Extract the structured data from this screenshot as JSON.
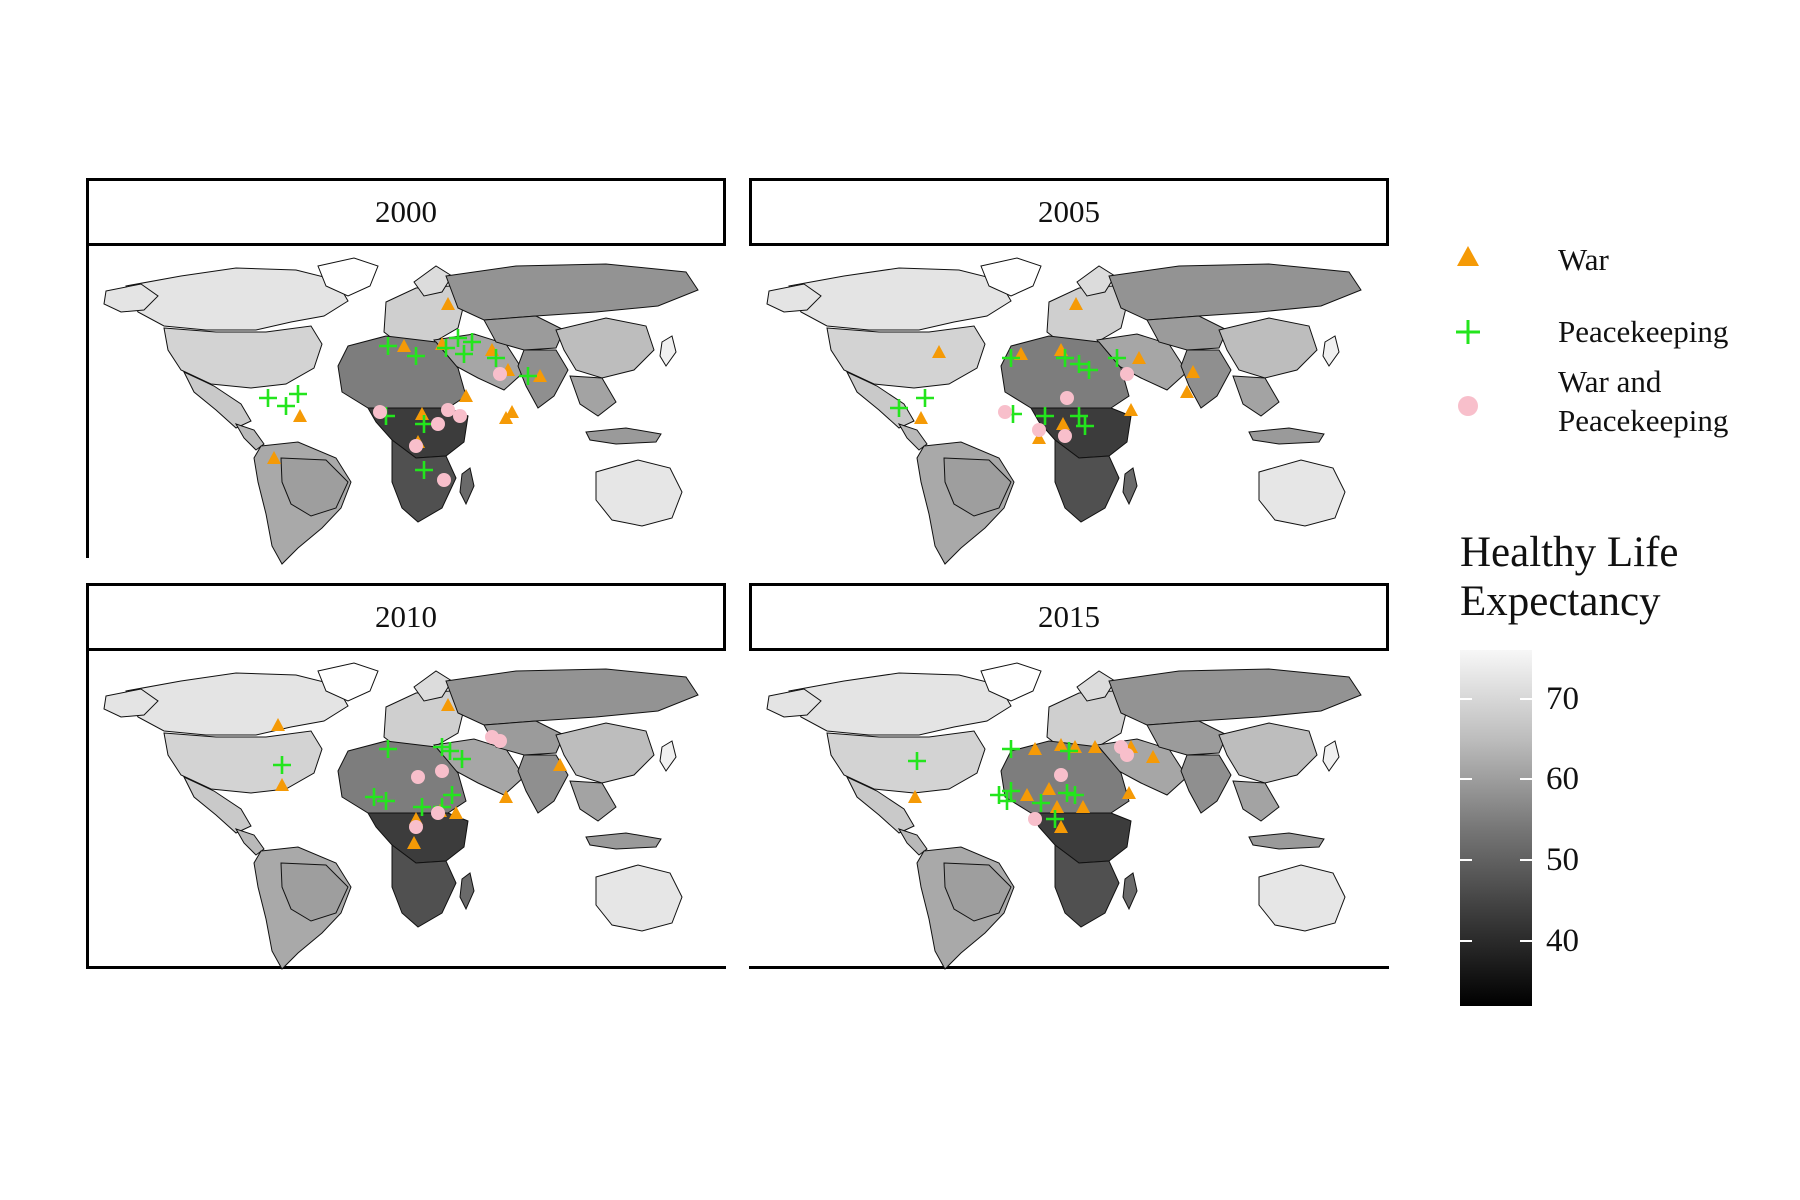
{
  "panels": [
    {
      "year": "2000"
    },
    {
      "year": "2005"
    },
    {
      "year": "2010"
    },
    {
      "year": "2015"
    }
  ],
  "legend": {
    "items": [
      {
        "label_line1": "War",
        "label_line2": "",
        "symbol": "triangle",
        "color": "#f59a06"
      },
      {
        "label_line1": "Peacekeeping",
        "label_line2": "",
        "symbol": "plus",
        "color": "#23e51d"
      },
      {
        "label_line1": "War and",
        "label_line2": "Peacekeeping",
        "symbol": "circle",
        "color": "#f8bfcb"
      }
    ]
  },
  "colorbar": {
    "title_line1": "Healthy Life",
    "title_line2": "Expectancy",
    "range": [
      32,
      76
    ],
    "ticks": [
      "40",
      "50",
      "60",
      "70"
    ],
    "low_color": "#000000",
    "high_color": "#f7f7f7"
  },
  "colors": {
    "war": "#f59a06",
    "peacekeeping": "#23e51d",
    "war_and_peacekeeping": "#f8bfcb"
  }
}
